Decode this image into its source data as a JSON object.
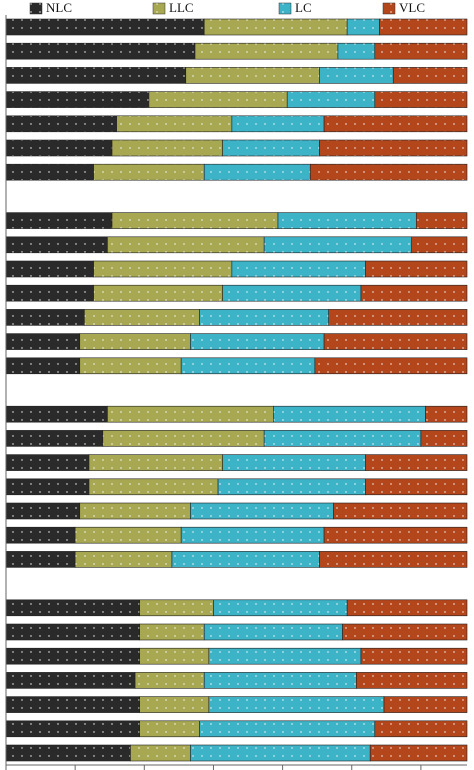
{
  "chart_data": {
    "type": "stacked_bar_horizontal",
    "categories": [
      null,
      null,
      null,
      null,
      null,
      null,
      null,
      null,
      null,
      null,
      null,
      null,
      null,
      null,
      null,
      null,
      null,
      null,
      null,
      null,
      null,
      null,
      null,
      null,
      null,
      null,
      null,
      null,
      null,
      null,
      null
    ],
    "series": [
      {
        "name": "NLC",
        "color": "#2a2a2a",
        "values": [
          43,
          41,
          39,
          31,
          24,
          23,
          19,
          null,
          23,
          22,
          19,
          19,
          17,
          16,
          16,
          null,
          22,
          21,
          18,
          18,
          16,
          15,
          15,
          null,
          29,
          29,
          29,
          28,
          29,
          29,
          27
        ]
      },
      {
        "name": "LLC",
        "color": "#a8a852",
        "values": [
          31,
          31,
          29,
          30,
          25,
          24,
          24,
          null,
          36,
          34,
          30,
          28,
          25,
          24,
          22,
          null,
          36,
          35,
          29,
          28,
          24,
          23,
          21,
          null,
          16,
          14,
          15,
          15,
          15,
          13,
          13
        ]
      },
      {
        "name": "LC",
        "color": "#3db3c8",
        "values": [
          7,
          8,
          16,
          19,
          20,
          21,
          23,
          null,
          30,
          32,
          29,
          30,
          28,
          29,
          29,
          null,
          33,
          34,
          31,
          32,
          31,
          31,
          32,
          null,
          29,
          30,
          33,
          33,
          38,
          38,
          39
        ]
      },
      {
        "name": "VLC",
        "color": "#b4461b",
        "values": [
          19,
          20,
          16,
          20,
          31,
          32,
          34,
          null,
          11,
          12,
          22,
          23,
          30,
          31,
          33,
          null,
          9,
          10,
          22,
          22,
          29,
          31,
          32,
          null,
          26,
          27,
          23,
          24,
          18,
          20,
          21
        ]
      }
    ],
    "xlim": [
      0,
      100
    ],
    "xticks": [
      0,
      15,
      30,
      45,
      60,
      75,
      90
    ],
    "legend": "top"
  }
}
